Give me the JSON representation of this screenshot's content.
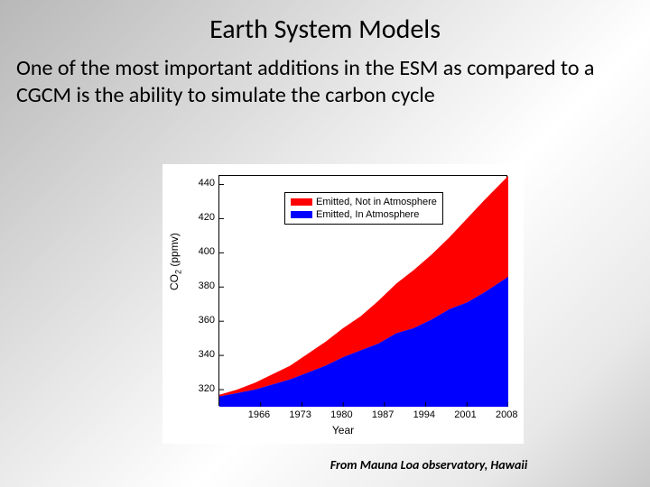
{
  "title": "Earth System Models",
  "body_text": "One of the most important additions in the ESM as compared to a CGCM is the ability to simulate the carbon cycle",
  "caption": "From Mauna Loa observatory, Hawaii",
  "chart": {
    "type": "area",
    "background_color": "#ffffff",
    "axis_color": "#000000",
    "x_label": "Year",
    "y_label_html": "CO<sub>2</sub> (ppmv)",
    "label_fontsize": 12,
    "tick_fontsize": 11,
    "xlim": [
      1959,
      2008
    ],
    "ylim": [
      310,
      445
    ],
    "x_ticks": [
      1966,
      1973,
      1980,
      1987,
      1994,
      2001,
      2008
    ],
    "y_ticks": [
      320,
      340,
      360,
      380,
      400,
      420,
      440
    ],
    "legend": {
      "position": "top-left",
      "border_color": "#000000",
      "bg_color": "#ffffff",
      "items": [
        {
          "label": "Emitted, Not in Atmosphere",
          "color": "#ff0000"
        },
        {
          "label": "Emitted, In Atmosphere",
          "color": "#0000ff"
        }
      ]
    },
    "series": {
      "years": [
        1959,
        1962,
        1965,
        1968,
        1971,
        1974,
        1977,
        1980,
        1983,
        1986,
        1989,
        1992,
        1995,
        1998,
        2001,
        2004,
        2008
      ],
      "in_atmos": [
        316,
        318,
        320,
        323,
        326,
        330,
        334,
        339,
        343,
        347,
        353,
        356,
        361,
        367,
        371,
        377,
        386
      ],
      "total_emitted": [
        317,
        320,
        324,
        329,
        334,
        341,
        348,
        356,
        363,
        372,
        382,
        390,
        399,
        409,
        420,
        431,
        445
      ]
    },
    "colors": {
      "lower_area": "#0000ff",
      "upper_area": "#ff0000",
      "baseline": "#ffffff"
    }
  }
}
